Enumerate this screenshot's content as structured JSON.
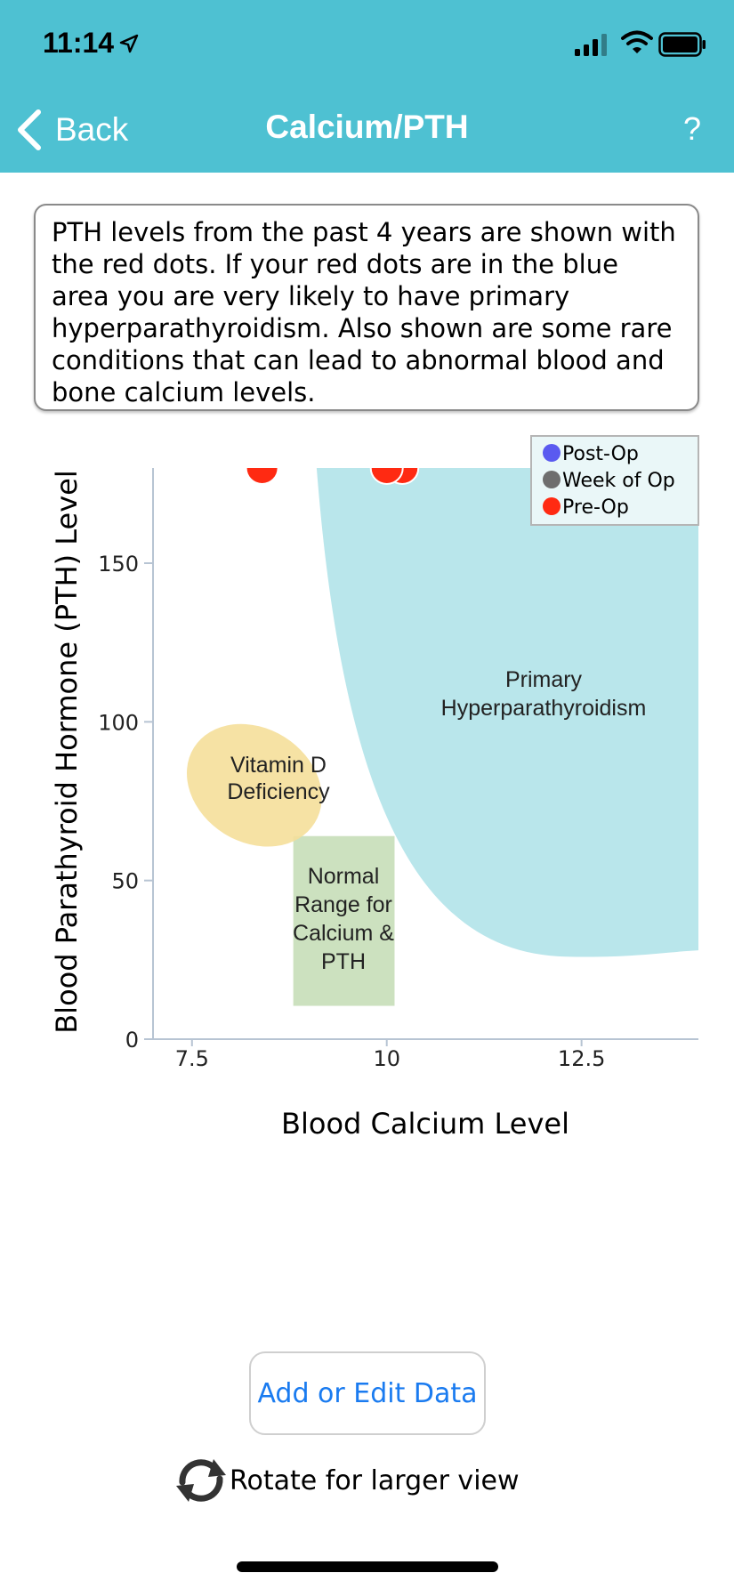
{
  "status_bar": {
    "time": "11:14"
  },
  "nav": {
    "back_label": "Back",
    "title": "Calcium/PTH",
    "help_label": "?"
  },
  "info_text": "PTH levels from the past 4 years are shown with the red dots. If your red dots are in the blue area you are very likely to have primary hyperparathyroidism. Also shown are some rare conditions that can lead to abnormal blood and bone calcium levels.",
  "chart_data": {
    "type": "scatter",
    "xlabel": "Blood Calcium Level",
    "ylabel": "Blood Parathyroid Hormone (PTH) Level",
    "xlim": [
      7.0,
      14.0
    ],
    "ylim": [
      0,
      180
    ],
    "xticks": [
      7.5,
      10,
      12.5
    ],
    "xtick_labels": [
      "7.5",
      "10",
      "12.5"
    ],
    "yticks": [
      0,
      50,
      100,
      150
    ],
    "ytick_labels": [
      "0",
      "50",
      "100",
      "150"
    ],
    "legend": {
      "placement": "top-right",
      "entries": [
        {
          "label": "Post-Op",
          "color": "#5a5af0"
        },
        {
          "label": "Week of Op",
          "color": "#6e6e6e"
        },
        {
          "label": "Pre-Op",
          "color": "#ff2a12"
        }
      ]
    },
    "regions": [
      {
        "name": "primary-hyperparathyroidism",
        "label": [
          "Primary",
          "Hyperparathyroidism"
        ],
        "color": "#b9e6eb"
      },
      {
        "name": "vitamin-d-deficiency",
        "label": [
          "Vitamin D",
          "Deficiency"
        ],
        "color": "#f5df9a"
      },
      {
        "name": "normal-range",
        "label": [
          "Normal",
          "Range for",
          "Calcium &",
          "PTH"
        ],
        "color": "#c8deba"
      }
    ],
    "series": [
      {
        "name": "Pre-Op",
        "color": "#ff2a12",
        "points": [
          {
            "x": 8.4,
            "y": 180
          },
          {
            "x": 10.2,
            "y": 180
          },
          {
            "x": 10.0,
            "y": 180
          }
        ]
      }
    ]
  },
  "buttons": {
    "add_edit": "Add or Edit Data"
  },
  "rotate_hint": "Rotate for larger view"
}
